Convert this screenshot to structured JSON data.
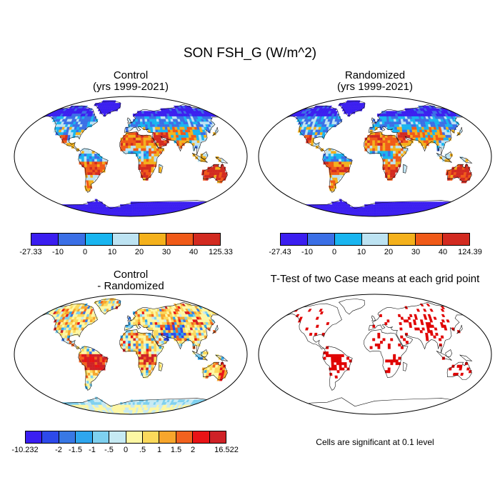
{
  "figure": {
    "title": "SON FSH_G (W/m^2)",
    "note": "Cells are significant at 0.1 level"
  },
  "chart_data": [
    {
      "type": "heatmap",
      "panel": "control",
      "title_line1": "Control",
      "title_line2": "(yrs 1999-2021)",
      "colorbar": {
        "labels": [
          "-27.33",
          "-10",
          "0",
          "10",
          "20",
          "30",
          "40",
          "125.33"
        ],
        "colors": [
          "#3b1ef0",
          "#3b6fe6",
          "#19b5f0",
          "#bde3f2",
          "#f4b11c",
          "#f05a18",
          "#d22a20"
        ]
      }
    },
    {
      "type": "heatmap",
      "panel": "randomized",
      "title_line1": "Randomized",
      "title_line2": "(yrs 1999-2021)",
      "colorbar": {
        "labels": [
          "-27.43",
          "-10",
          "0",
          "10",
          "20",
          "30",
          "40",
          "124.39"
        ],
        "colors": [
          "#3b1ef0",
          "#3b6fe6",
          "#19b5f0",
          "#bde3f2",
          "#f4b11c",
          "#f05a18",
          "#d22a20"
        ]
      }
    },
    {
      "type": "heatmap",
      "panel": "difference",
      "title_line1": "Control",
      "title_line2": "- Randomized",
      "colorbar": {
        "labels": [
          "-10.232",
          "-2",
          "-1.5",
          "-1",
          "-.5",
          "0",
          ".5",
          "1",
          "1.5",
          "2",
          "16.522"
        ],
        "colors": [
          "#3a1ef2",
          "#2d49ea",
          "#3878e4",
          "#2ea6ee",
          "#7ed0ef",
          "#c6eaf3",
          "#fdf7a4",
          "#fbd95b",
          "#f7a62c",
          "#f2621e",
          "#e81416",
          "#cf2227"
        ]
      }
    },
    {
      "type": "heatmap",
      "panel": "ttest",
      "title_line1": "T-Test of two Case means at each grid point",
      "significance_color": "#e00000"
    }
  ]
}
